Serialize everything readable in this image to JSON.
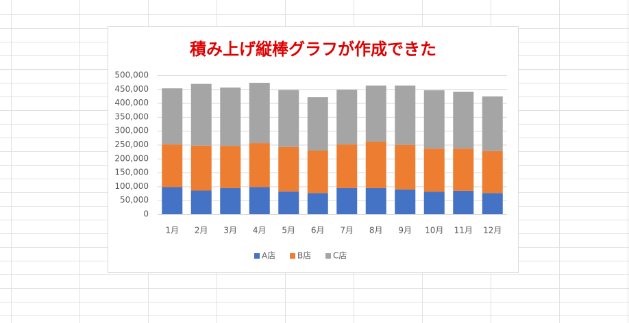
{
  "chart_data": {
    "type": "stacked_bar",
    "title": "積み上げ縦棒グラフが作成できた",
    "categories": [
      "1月",
      "2月",
      "3月",
      "4月",
      "5月",
      "6月",
      "7月",
      "8月",
      "9月",
      "10月",
      "11月",
      "12月"
    ],
    "series": [
      {
        "name": "A店",
        "color": "#4472c4",
        "values": [
          98000,
          85000,
          94000,
          98000,
          82000,
          76000,
          94000,
          94000,
          89000,
          81000,
          84000,
          76000
        ]
      },
      {
        "name": "B店",
        "color": "#ed7d31",
        "values": [
          153000,
          162000,
          152000,
          158000,
          160000,
          153000,
          157000,
          167000,
          160000,
          155000,
          152000,
          151000
        ]
      },
      {
        "name": "C店",
        "color": "#a5a5a5",
        "values": [
          202000,
          222000,
          210000,
          217000,
          205000,
          192000,
          197000,
          202000,
          214000,
          210000,
          205000,
          197000
        ]
      }
    ],
    "ylim": [
      0,
      500000
    ],
    "yticks": [
      0,
      {
        "value": 50000,
        "label": "50,000"
      },
      {
        "value": 100000,
        "label": "100,000"
      },
      {
        "value": 150000,
        "label": "150,000"
      },
      {
        "value": 200000,
        "label": "200,000"
      },
      {
        "value": 250000,
        "label": "250,000"
      },
      {
        "value": 300000,
        "label": "300,000"
      },
      {
        "value": 350000,
        "label": "350,000"
      },
      {
        "value": 400000,
        "label": "400,000"
      },
      {
        "value": 450000,
        "label": "450,000"
      },
      {
        "value": 500000,
        "label": "500,000"
      }
    ],
    "grid": true,
    "legend": "bottom"
  }
}
